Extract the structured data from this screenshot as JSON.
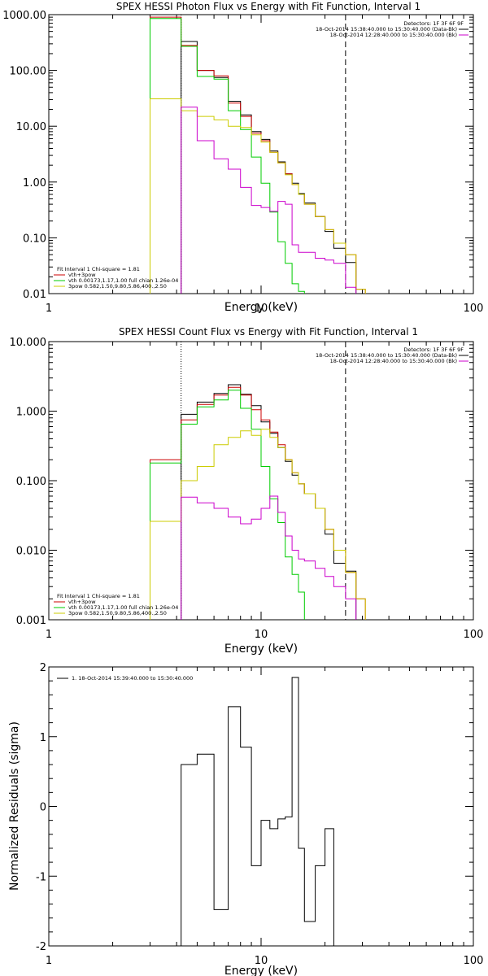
{
  "chart_data": [
    {
      "type": "line",
      "title": "SPEX HESSI Photon Flux vs Energy with Fit Function, Interval 1",
      "xlabel": "Energy (keV)",
      "ylabel": "",
      "x_scale": "log",
      "y_scale": "log",
      "xlim": [
        1,
        100
      ],
      "ylim": [
        0.01,
        1000
      ],
      "x_ticks": [
        "1",
        "10",
        "100"
      ],
      "y_ticks": [
        "0.01",
        "0.10",
        "1.00",
        "10.00",
        "100.00",
        "1000.00"
      ],
      "grid": false,
      "legend_top_right": [
        "Detectors: 1F 3F 6F 9F",
        "18-Oct-2014 15:38:40.000 to 15:30:40.000 (Data-Bk)",
        "18-Oct-2014 12:28:40.000 to 15:30:40.000 (Bk)"
      ],
      "legend_top_right_colors": [
        "#000000",
        "#000000",
        "#cc00cc"
      ],
      "legend_bottom_left": [
        "Fit Interval 1    Chi-square = 1.81",
        "vth+3pow",
        "vth 0.00173,1.17,1.00  full chian 1.26e-04",
        "3pow 0.582,1.50,9.80,5.86,400.,2.50"
      ],
      "legend_bottom_left_colors": [
        "#000000",
        "#cc0000",
        "#00cc00",
        "#cccc00"
      ],
      "vertical_lines": [
        {
          "x": 4.2,
          "style": "dotted",
          "color": "#000000"
        },
        {
          "x": 25,
          "style": "dashed",
          "color": "#000000"
        }
      ],
      "bin_edges": [
        3,
        4.2,
        5,
        6,
        7,
        8,
        9,
        10,
        11,
        12,
        13,
        14,
        15,
        16,
        18,
        20,
        22,
        25,
        28,
        31
      ],
      "series": [
        {
          "name": "Data-Bk",
          "color": "#000000",
          "values": [
            null,
            330,
            100,
            75,
            28,
            16,
            8,
            5.8,
            3.6,
            2.3,
            1.4,
            0.95,
            0.62,
            0.42,
            0.24,
            0.13,
            0.065,
            0.036,
            null
          ]
        },
        {
          "name": "vth+3pow",
          "color": "#cc0000",
          "values": [
            900,
            280,
            100,
            80,
            26,
            15,
            7.5,
            5.5,
            3.4,
            2.2,
            1.4,
            0.9,
            0.6,
            0.4,
            0.24,
            0.14,
            0.08,
            0.05,
            0.012
          ]
        },
        {
          "name": "vth",
          "color": "#00cc00",
          "values": [
            850,
            270,
            78,
            70,
            19,
            8.7,
            2.8,
            0.95,
            0.29,
            0.085,
            0.035,
            0.015,
            0.011,
            null,
            null,
            null,
            null,
            null,
            null
          ]
        },
        {
          "name": "3pow",
          "color": "#cccc00",
          "values": [
            31,
            19,
            15,
            13,
            10,
            9.5,
            7,
            5.2,
            3.4,
            2.2,
            1.35,
            0.9,
            0.6,
            0.4,
            0.24,
            0.14,
            0.08,
            0.05,
            0.012
          ]
        },
        {
          "name": "Bk",
          "color": "#cc00cc",
          "values": [
            null,
            22,
            5.5,
            2.6,
            1.7,
            0.8,
            0.38,
            0.35,
            0.3,
            0.45,
            0.4,
            0.075,
            0.055,
            0.055,
            0.043,
            0.04,
            0.035,
            0.013,
            null
          ]
        }
      ]
    },
    {
      "type": "line",
      "title": "SPEX HESSI Count Flux vs Energy with Fit Function, Interval 1",
      "xlabel": "Energy (keV)",
      "ylabel": "",
      "x_scale": "log",
      "y_scale": "log",
      "xlim": [
        1,
        100
      ],
      "ylim": [
        0.001,
        10
      ],
      "x_ticks": [
        "1",
        "10",
        "100"
      ],
      "y_ticks": [
        "0.001",
        "0.010",
        "0.100",
        "1.000",
        "10.000"
      ],
      "grid": false,
      "legend_top_right": [
        "Detectors: 1F 3F 6F 9F",
        "18-Oct-2014 15:38:40.000 to 15:30:40.000 (Data-Bk)",
        "18-Oct-2014 12:28:40.000 to 15:30:40.000 (Bk)"
      ],
      "legend_top_right_colors": [
        "#000000",
        "#000000",
        "#cc00cc"
      ],
      "legend_bottom_left": [
        "Fit Interval 1    Chi-square = 1.81",
        "vth+3pow",
        "vth 0.00173,1.17,1.00  full chian 1.26e-04",
        "3pow 0.582,1.50,9.80,5.86,400.,2.50"
      ],
      "legend_bottom_left_colors": [
        "#000000",
        "#cc0000",
        "#00cc00",
        "#cccc00"
      ],
      "vertical_lines": [
        {
          "x": 4.2,
          "style": "dotted",
          "color": "#000000"
        },
        {
          "x": 25,
          "style": "dashed",
          "color": "#000000"
        }
      ],
      "bin_edges": [
        3,
        4.2,
        5,
        6,
        7,
        8,
        9,
        10,
        11,
        12,
        13,
        14,
        15,
        16,
        18,
        20,
        22,
        25,
        28,
        31
      ],
      "series": [
        {
          "name": "Data-Bk",
          "color": "#000000",
          "values": [
            null,
            0.9,
            1.35,
            1.8,
            2.4,
            1.75,
            1.2,
            0.7,
            0.48,
            0.3,
            0.19,
            0.12,
            0.09,
            0.065,
            0.04,
            0.017,
            0.0065,
            0.005,
            null
          ]
        },
        {
          "name": "vth+3pow",
          "color": "#cc0000",
          "values": [
            0.2,
            0.75,
            1.25,
            1.7,
            2.2,
            1.7,
            1.05,
            0.75,
            0.5,
            0.33,
            0.2,
            0.13,
            0.09,
            0.065,
            0.04,
            0.02,
            0.01,
            0.0048,
            0.002
          ]
        },
        {
          "name": "vth",
          "color": "#00cc00",
          "values": [
            0.18,
            0.65,
            1.15,
            1.45,
            2.0,
            1.1,
            0.55,
            0.16,
            0.055,
            0.025,
            0.008,
            0.0045,
            0.0025,
            null,
            null,
            null,
            null,
            null,
            null
          ]
        },
        {
          "name": "3pow",
          "color": "#cccc00",
          "values": [
            0.026,
            0.1,
            0.16,
            0.33,
            0.42,
            0.52,
            0.45,
            0.55,
            0.42,
            0.3,
            0.2,
            0.13,
            0.09,
            0.065,
            0.04,
            0.02,
            0.01,
            0.0048,
            0.002
          ]
        },
        {
          "name": "Bk",
          "color": "#cc00cc",
          "values": [
            null,
            0.058,
            0.048,
            0.04,
            0.03,
            0.024,
            0.028,
            0.04,
            0.06,
            0.035,
            0.016,
            0.01,
            0.0075,
            0.007,
            0.0055,
            0.0042,
            0.003,
            0.002,
            null
          ]
        }
      ]
    },
    {
      "type": "line",
      "title": "",
      "xlabel": "Energy (keV)",
      "ylabel": "Normalized Residuals (sigma)",
      "x_scale": "log",
      "y_scale": "linear",
      "xlim": [
        1,
        100
      ],
      "ylim": [
        -2,
        2
      ],
      "x_ticks": [
        "1",
        "10",
        "100"
      ],
      "y_ticks": [
        "-2",
        "-1",
        "0",
        "1",
        "2"
      ],
      "grid": false,
      "legend": [
        "1. 18-Oct-2014 15:39:40.000 to 15:30:40.000"
      ],
      "legend_colors": [
        "#000000"
      ],
      "bin_edges": [
        4.2,
        5,
        6,
        7,
        8,
        9,
        10,
        11,
        12,
        13,
        14,
        15,
        16,
        18,
        20,
        22,
        25
      ],
      "series": [
        {
          "name": "1. 18-Oct-2014 15:39:40.000 to 15:30:40.000",
          "color": "#000000",
          "values": [
            0.6,
            0.75,
            -1.48,
            1.43,
            0.85,
            -0.85,
            -0.2,
            -0.32,
            -0.18,
            -0.15,
            1.85,
            -0.6,
            -1.65,
            -0.85,
            -0.32,
            null
          ]
        }
      ]
    }
  ]
}
